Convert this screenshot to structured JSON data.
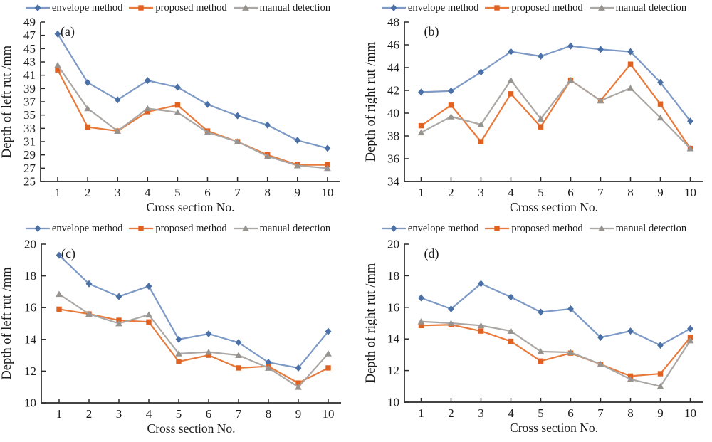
{
  "figure": {
    "background": "#ffffff",
    "text_color": "#1c1c1c",
    "axis_color": "#2a2a2a",
    "legend_items": [
      {
        "label": "envelope method",
        "marker": "diamond",
        "series_key": "envelope"
      },
      {
        "label": "proposed method",
        "marker": "square",
        "series_key": "proposed"
      },
      {
        "label": "manual detection",
        "marker": "triangle",
        "series_key": "manual"
      }
    ],
    "series_colors": {
      "envelope": {
        "line": "#7d99c5",
        "marker": "#4a70a6"
      },
      "proposed": {
        "line": "#e87a3c",
        "marker": "#df6223"
      },
      "manual": {
        "line": "#aaa7a4",
        "marker": "#97938e"
      }
    }
  },
  "chart_data": [
    {
      "type": "line",
      "panel": "a",
      "panel_label": "(a)",
      "xlabel": "Cross section No.",
      "ylabel": "Depth of left rut /mm",
      "legend_position": "top",
      "grid": false,
      "x": [
        1,
        2,
        3,
        4,
        5,
        6,
        7,
        8,
        9,
        10
      ],
      "xticks": [
        "1",
        "2",
        "3",
        "4",
        "5",
        "6",
        "7",
        "8",
        "9",
        "10"
      ],
      "ylim": [
        25,
        49
      ],
      "yticks": [
        25,
        27,
        29,
        31,
        33,
        35,
        37,
        39,
        41,
        43,
        45,
        47,
        49
      ],
      "series": [
        {
          "name": "envelope method",
          "key": "envelope",
          "marker": "diamond",
          "values": [
            47.2,
            39.9,
            37.3,
            40.2,
            39.2,
            36.6,
            34.9,
            33.5,
            31.2,
            30.0
          ]
        },
        {
          "name": "proposed method",
          "key": "proposed",
          "marker": "square",
          "values": [
            41.8,
            33.2,
            32.6,
            35.5,
            36.5,
            32.6,
            31.0,
            29.0,
            27.5,
            27.5
          ]
        },
        {
          "name": "manual detection",
          "key": "manual",
          "marker": "triangle",
          "values": [
            42.5,
            36.0,
            32.6,
            36.0,
            35.4,
            32.4,
            31.0,
            28.8,
            27.4,
            27.0
          ]
        }
      ]
    },
    {
      "type": "line",
      "panel": "b",
      "panel_label": "(b)",
      "xlabel": "Cross section No.",
      "ylabel": "Depth of right rut /mm",
      "legend_position": "top",
      "grid": false,
      "x": [
        1,
        2,
        3,
        4,
        5,
        6,
        7,
        8,
        9,
        10
      ],
      "xticks": [
        "1",
        "2",
        "3",
        "4",
        "5",
        "6",
        "7",
        "8",
        "9",
        "10"
      ],
      "ylim": [
        34,
        48
      ],
      "yticks": [
        34,
        36,
        38,
        40,
        42,
        44,
        46,
        48
      ],
      "series": [
        {
          "name": "envelope method",
          "key": "envelope",
          "marker": "diamond",
          "values": [
            41.85,
            41.95,
            43.6,
            45.4,
            45.0,
            45.9,
            45.6,
            45.4,
            42.7,
            39.3
          ]
        },
        {
          "name": "proposed method",
          "key": "proposed",
          "marker": "square",
          "values": [
            38.9,
            40.7,
            37.5,
            41.7,
            38.8,
            42.9,
            41.1,
            44.3,
            40.8,
            36.9
          ]
        },
        {
          "name": "manual detection",
          "key": "manual",
          "marker": "triangle",
          "values": [
            38.3,
            39.7,
            39.0,
            42.9,
            39.5,
            42.9,
            41.1,
            42.2,
            39.6,
            36.9
          ]
        }
      ]
    },
    {
      "type": "line",
      "panel": "c",
      "panel_label": "(c)",
      "xlabel": "Cross section No.",
      "ylabel": "Depth of left rut /mm",
      "legend_position": "top",
      "grid": false,
      "x": [
        1,
        2,
        3,
        4,
        5,
        6,
        7,
        8,
        9,
        10
      ],
      "xticks": [
        "1",
        "2",
        "3",
        "4",
        "5",
        "6",
        "7",
        "8",
        "9",
        "10"
      ],
      "ylim": [
        10,
        20
      ],
      "yticks": [
        10,
        12,
        14,
        16,
        18,
        20
      ],
      "series": [
        {
          "name": "envelope method",
          "key": "envelope",
          "marker": "diamond",
          "values": [
            19.3,
            17.5,
            16.7,
            17.35,
            14.0,
            14.35,
            13.8,
            12.55,
            12.2,
            14.5
          ]
        },
        {
          "name": "proposed method",
          "key": "proposed",
          "marker": "square",
          "values": [
            15.9,
            15.6,
            15.2,
            15.1,
            12.6,
            13.0,
            12.2,
            12.3,
            11.25,
            12.2
          ]
        },
        {
          "name": "manual detection",
          "key": "manual",
          "marker": "triangle",
          "values": [
            16.85,
            15.6,
            15.0,
            15.55,
            13.1,
            13.2,
            13.0,
            12.2,
            11.0,
            13.1
          ]
        }
      ]
    },
    {
      "type": "line",
      "panel": "d",
      "panel_label": "(d)",
      "xlabel": "Cross section No.",
      "ylabel": "Depth of right rut /mm",
      "legend_position": "top",
      "grid": false,
      "x": [
        1,
        2,
        3,
        4,
        5,
        6,
        7,
        8,
        9,
        10
      ],
      "xticks": [
        "1",
        "2",
        "3",
        "4",
        "5",
        "6",
        "7",
        "8",
        "9",
        "10"
      ],
      "ylim": [
        10,
        20
      ],
      "yticks": [
        10,
        12,
        14,
        16,
        18,
        20
      ],
      "series": [
        {
          "name": "envelope method",
          "key": "envelope",
          "marker": "diamond",
          "values": [
            16.6,
            15.9,
            17.5,
            16.65,
            15.7,
            15.9,
            14.1,
            14.5,
            13.6,
            14.65
          ]
        },
        {
          "name": "proposed method",
          "key": "proposed",
          "marker": "square",
          "values": [
            14.85,
            14.9,
            14.5,
            13.85,
            12.6,
            13.1,
            12.4,
            11.65,
            11.8,
            14.1
          ]
        },
        {
          "name": "manual detection",
          "key": "manual",
          "marker": "triangle",
          "values": [
            15.1,
            15.0,
            14.85,
            14.5,
            13.2,
            13.15,
            12.4,
            11.45,
            11.0,
            13.9
          ]
        }
      ]
    }
  ]
}
